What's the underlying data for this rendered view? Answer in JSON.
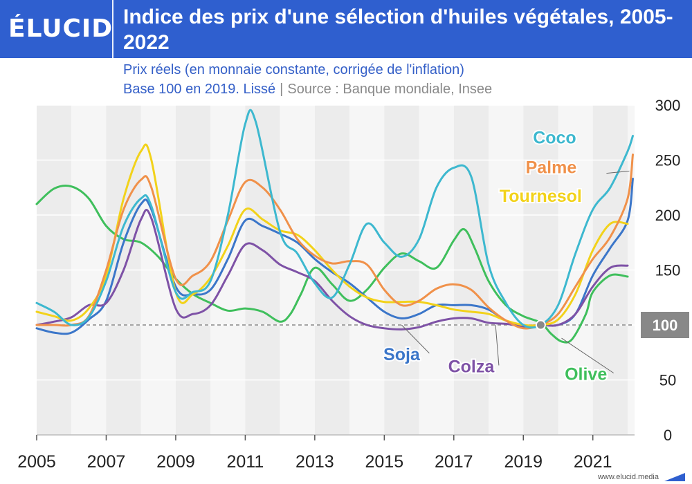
{
  "brand": {
    "logo": "ÉLUCID",
    "footer": "www.elucid.media"
  },
  "colors": {
    "header": "#2f5fcf",
    "coco": "#3db8cf",
    "palme": "#f0914a",
    "tournesol": "#f2d21a",
    "soja": "#3b76c9",
    "colza": "#7e52a6",
    "olive": "#3fbf5c",
    "reference": "#888888"
  },
  "header": {
    "title": "Indice des prix d'une sélection d'huiles végétales, 2005-2022"
  },
  "subtitle": {
    "line1": "Prix réels (en monnaie constante, corrigée de l'inflation)",
    "line2": "Base 100 en 2019. Lissé",
    "source": "Source : Banque mondiale, Insee"
  },
  "chart_data": {
    "type": "line",
    "title": "Indice des prix d'une sélection d'huiles végétales, 2005-2022",
    "xlabel": "",
    "ylabel": "",
    "xlim": [
      2005,
      2022.2
    ],
    "ylim": [
      0,
      300
    ],
    "x_ticks": [
      2005,
      2007,
      2009,
      2011,
      2013,
      2015,
      2017,
      2019,
      2021
    ],
    "y_ticks": [
      0,
      50,
      100,
      150,
      200,
      250,
      300
    ],
    "y_axis_side": "right",
    "grid": true,
    "background": "alternating vertical bands per year",
    "reference_line": {
      "y": 100,
      "style": "dashed",
      "label": "100"
    },
    "reference_point": {
      "x": 2019.5,
      "y": 100
    },
    "series": [
      {
        "name": "Olive",
        "color_key": "olive",
        "label_x": 2020.8,
        "label_y": 50,
        "leader_from": [
          2020.1,
          88
        ],
        "points": [
          [
            2005,
            210
          ],
          [
            2005.5,
            224
          ],
          [
            2006,
            226
          ],
          [
            2006.5,
            215
          ],
          [
            2007,
            190
          ],
          [
            2007.5,
            178
          ],
          [
            2008,
            175
          ],
          [
            2008.5,
            162
          ],
          [
            2009,
            142
          ],
          [
            2009.5,
            128
          ],
          [
            2010,
            120
          ],
          [
            2010.5,
            113
          ],
          [
            2011,
            115
          ],
          [
            2011.5,
            112
          ],
          [
            2012,
            103
          ],
          [
            2012.3,
            110
          ],
          [
            2012.6,
            128
          ],
          [
            2013,
            152
          ],
          [
            2013.5,
            137
          ],
          [
            2014,
            122
          ],
          [
            2014.5,
            132
          ],
          [
            2015,
            152
          ],
          [
            2015.5,
            165
          ],
          [
            2016,
            158
          ],
          [
            2016.5,
            152
          ],
          [
            2017,
            177
          ],
          [
            2017.3,
            187
          ],
          [
            2017.6,
            170
          ],
          [
            2018,
            140
          ],
          [
            2018.5,
            118
          ],
          [
            2019,
            108
          ],
          [
            2019.5,
            102
          ],
          [
            2019.8,
            92
          ],
          [
            2020.1,
            85
          ],
          [
            2020.4,
            87
          ],
          [
            2020.8,
            110
          ],
          [
            2021,
            130
          ],
          [
            2021.5,
            145
          ],
          [
            2022,
            144
          ]
        ]
      },
      {
        "name": "Soja",
        "color_key": "soja",
        "label_x": 2015.5,
        "label_y": 68,
        "leader_from": [
          2015.5,
          100
        ],
        "points": [
          [
            2005,
            97
          ],
          [
            2005.5,
            93
          ],
          [
            2006,
            93
          ],
          [
            2006.5,
            105
          ],
          [
            2007,
            122
          ],
          [
            2007.5,
            175
          ],
          [
            2008,
            210
          ],
          [
            2008.3,
            205
          ],
          [
            2009,
            135
          ],
          [
            2009.5,
            128
          ],
          [
            2010,
            132
          ],
          [
            2010.5,
            160
          ],
          [
            2011,
            195
          ],
          [
            2011.5,
            190
          ],
          [
            2012,
            183
          ],
          [
            2012.5,
            175
          ],
          [
            2013,
            160
          ],
          [
            2013.5,
            148
          ],
          [
            2014,
            138
          ],
          [
            2014.5,
            125
          ],
          [
            2015,
            112
          ],
          [
            2015.5,
            106
          ],
          [
            2016,
            110
          ],
          [
            2016.5,
            118
          ],
          [
            2017,
            118
          ],
          [
            2017.5,
            118
          ],
          [
            2018,
            114
          ],
          [
            2018.5,
            104
          ],
          [
            2019,
            98
          ],
          [
            2019.5,
            100
          ],
          [
            2020,
            100
          ],
          [
            2020.5,
            110
          ],
          [
            2021,
            145
          ],
          [
            2021.5,
            170
          ],
          [
            2022,
            195
          ],
          [
            2022.15,
            233
          ]
        ]
      },
      {
        "name": "Colza",
        "color_key": "colza",
        "label_x": 2017.5,
        "label_y": 57,
        "leader_from": [
          2018.2,
          100
        ],
        "points": [
          [
            2005,
            100
          ],
          [
            2005.5,
            103
          ],
          [
            2006,
            107
          ],
          [
            2006.5,
            118
          ],
          [
            2007,
            120
          ],
          [
            2007.5,
            150
          ],
          [
            2008,
            196
          ],
          [
            2008.3,
            197
          ],
          [
            2009,
            115
          ],
          [
            2009.5,
            110
          ],
          [
            2010,
            118
          ],
          [
            2010.5,
            145
          ],
          [
            2011,
            173
          ],
          [
            2011.5,
            168
          ],
          [
            2012,
            155
          ],
          [
            2012.5,
            148
          ],
          [
            2013,
            140
          ],
          [
            2013.5,
            122
          ],
          [
            2014,
            108
          ],
          [
            2014.5,
            100
          ],
          [
            2015,
            97
          ],
          [
            2015.5,
            96
          ],
          [
            2016,
            98
          ],
          [
            2016.5,
            103
          ],
          [
            2017,
            106
          ],
          [
            2017.5,
            106
          ],
          [
            2018,
            102
          ],
          [
            2018.5,
            101
          ],
          [
            2019,
            99
          ],
          [
            2019.5,
            100
          ],
          [
            2020,
            100
          ],
          [
            2020.5,
            110
          ],
          [
            2021,
            135
          ],
          [
            2021.5,
            152
          ],
          [
            2022,
            154
          ]
        ]
      },
      {
        "name": "Tournesol",
        "color_key": "tournesol",
        "label_x": 2019.5,
        "label_y": 212,
        "leader_from": null,
        "points": [
          [
            2005,
            112
          ],
          [
            2005.5,
            108
          ],
          [
            2006,
            104
          ],
          [
            2006.5,
            115
          ],
          [
            2007,
            145
          ],
          [
            2007.5,
            215
          ],
          [
            2008,
            258
          ],
          [
            2008.3,
            250
          ],
          [
            2009,
            130
          ],
          [
            2009.5,
            128
          ],
          [
            2010,
            143
          ],
          [
            2010.5,
            172
          ],
          [
            2011,
            205
          ],
          [
            2011.5,
            196
          ],
          [
            2012,
            186
          ],
          [
            2012.5,
            182
          ],
          [
            2013,
            168
          ],
          [
            2013.5,
            150
          ],
          [
            2014,
            135
          ],
          [
            2014.5,
            125
          ],
          [
            2015,
            121
          ],
          [
            2015.5,
            121
          ],
          [
            2016,
            121
          ],
          [
            2016.5,
            118
          ],
          [
            2017,
            114
          ],
          [
            2017.5,
            112
          ],
          [
            2018,
            110
          ],
          [
            2018.5,
            104
          ],
          [
            2019,
            100
          ],
          [
            2019.5,
            100
          ],
          [
            2020,
            105
          ],
          [
            2020.5,
            128
          ],
          [
            2021,
            168
          ],
          [
            2021.5,
            192
          ],
          [
            2022,
            192
          ]
        ]
      },
      {
        "name": "Palme",
        "color_key": "palme",
        "label_x": 2019.8,
        "label_y": 238,
        "leader_from": [
          2022.05,
          240
        ],
        "points": [
          [
            2005,
            100
          ],
          [
            2005.5,
            100
          ],
          [
            2006,
            100
          ],
          [
            2006.5,
            108
          ],
          [
            2007,
            150
          ],
          [
            2007.5,
            205
          ],
          [
            2008,
            232
          ],
          [
            2008.3,
            225
          ],
          [
            2009,
            142
          ],
          [
            2009.5,
            145
          ],
          [
            2010,
            158
          ],
          [
            2010.5,
            195
          ],
          [
            2011,
            230
          ],
          [
            2011.5,
            225
          ],
          [
            2012,
            205
          ],
          [
            2012.5,
            178
          ],
          [
            2013,
            163
          ],
          [
            2013.5,
            156
          ],
          [
            2014,
            158
          ],
          [
            2014.5,
            155
          ],
          [
            2015,
            132
          ],
          [
            2015.5,
            118
          ],
          [
            2016,
            122
          ],
          [
            2016.5,
            133
          ],
          [
            2017,
            137
          ],
          [
            2017.5,
            132
          ],
          [
            2018,
            116
          ],
          [
            2018.5,
            104
          ],
          [
            2019,
            97
          ],
          [
            2019.5,
            100
          ],
          [
            2020,
            110
          ],
          [
            2020.5,
            135
          ],
          [
            2021,
            160
          ],
          [
            2021.5,
            180
          ],
          [
            2022,
            215
          ],
          [
            2022.15,
            255
          ]
        ]
      },
      {
        "name": "Coco",
        "color_key": "coco",
        "label_x": 2019.9,
        "label_y": 265,
        "leader_from": null,
        "points": [
          [
            2005,
            120
          ],
          [
            2005.5,
            112
          ],
          [
            2006,
            100
          ],
          [
            2006.5,
            107
          ],
          [
            2007,
            140
          ],
          [
            2007.5,
            190
          ],
          [
            2008,
            215
          ],
          [
            2008.3,
            208
          ],
          [
            2009,
            130
          ],
          [
            2009.5,
            130
          ],
          [
            2010,
            140
          ],
          [
            2010.5,
            200
          ],
          [
            2011,
            283
          ],
          [
            2011.3,
            285
          ],
          [
            2012,
            185
          ],
          [
            2012.5,
            165
          ],
          [
            2013,
            138
          ],
          [
            2013.5,
            125
          ],
          [
            2014,
            155
          ],
          [
            2014.5,
            192
          ],
          [
            2015,
            175
          ],
          [
            2015.5,
            162
          ],
          [
            2016,
            178
          ],
          [
            2016.5,
            225
          ],
          [
            2017,
            243
          ],
          [
            2017.5,
            235
          ],
          [
            2018,
            155
          ],
          [
            2018.5,
            120
          ],
          [
            2019,
            100
          ],
          [
            2019.5,
            100
          ],
          [
            2020,
            118
          ],
          [
            2020.5,
            165
          ],
          [
            2021,
            205
          ],
          [
            2021.5,
            225
          ],
          [
            2022,
            258
          ],
          [
            2022.15,
            272
          ]
        ]
      }
    ]
  }
}
